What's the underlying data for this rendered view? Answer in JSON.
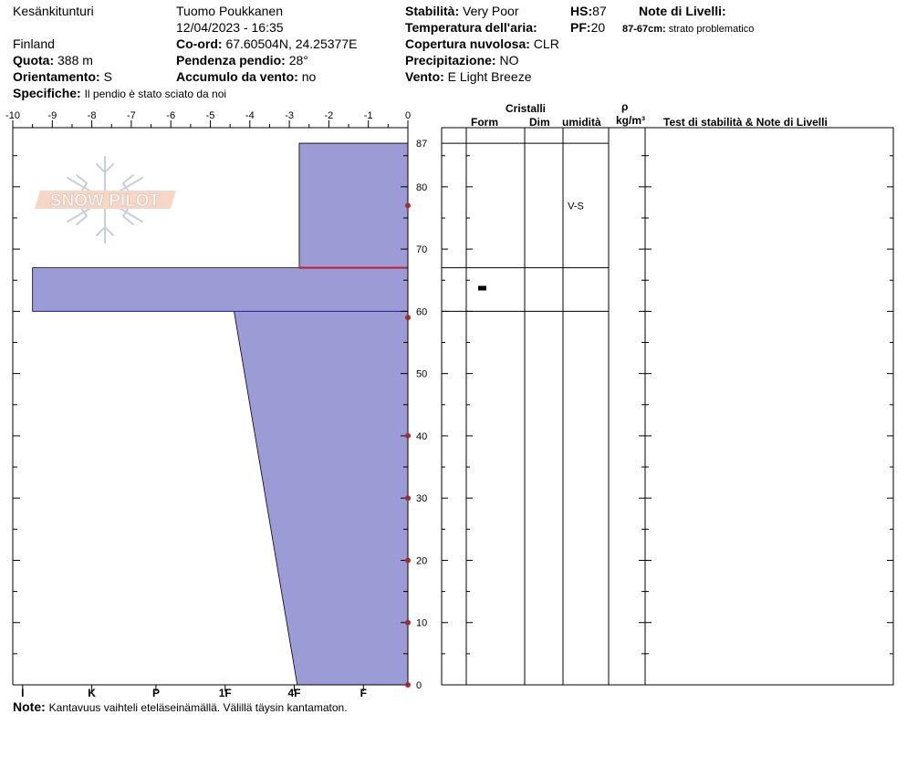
{
  "header": {
    "location": "Kesänkitunturi",
    "country": "Finland",
    "observer": "Tuomo Poukkanen",
    "datetime": "12/04/2023 - 16:35",
    "elevation_label": "Quota:",
    "elevation_value": "388 m",
    "aspect_label": "Orientamento:",
    "aspect_value": "S",
    "specifics_label": "Specifiche:",
    "specifics_value": "Il pendio è stato sciato da noi",
    "coord_label": "Co-ord:",
    "coord_value": "67.60504N, 24.25377E",
    "slope_label": "Pendenza pendio:",
    "slope_value": "28°",
    "wind_loading_label": "Accumulo da vento:",
    "wind_loading_value": "no",
    "stability_label": "Stabilità:",
    "stability_value": "Very Poor",
    "air_temp_label": "Temperatura dell'aria:",
    "sky_label": "Copertura nuvolosa:",
    "sky_value": "CLR",
    "precip_label": "Precipitazione:",
    "precip_value": "NO",
    "wind_label": "Vento:",
    "wind_value": "E Light Breeze",
    "hs_label": "HS:",
    "hs_value": "87",
    "pf_label": "PF:",
    "pf_value": "20",
    "layer_notes_label": "Note di Livelli:",
    "layer_note_range": "87-67cm:",
    "layer_note_text": "strato problematico"
  },
  "note": {
    "label": "Note:",
    "text": "Kantavuus vaihteli eteläseinämällä. Välillä täysin kantamaton."
  },
  "logo": {
    "text": "SNOW PILOT"
  },
  "table_headers": {
    "crystals": "Cristalli",
    "form": "Form",
    "size": "Dim",
    "moisture": "umidità",
    "density_symbol": "ρ",
    "density_unit": "kg/m³",
    "stability_notes": "Test di stabilità & Note di Livelli"
  },
  "chart_data": {
    "type": "area",
    "title": "",
    "x_axis_top": {
      "label": "",
      "ticks": [
        -10,
        -9,
        -8,
        -7,
        -6,
        -5,
        -4,
        -3,
        -2,
        -1,
        0
      ],
      "range": [
        -10,
        0
      ]
    },
    "x_axis_bottom": {
      "label": "",
      "ticks": [
        "I",
        "K",
        "P",
        "1F",
        "4F",
        "F"
      ]
    },
    "y_axis": {
      "label": "",
      "range": [
        0,
        87
      ],
      "ticks": [
        0,
        10,
        20,
        30,
        40,
        50,
        60,
        70,
        80,
        87
      ]
    },
    "hardness_profile": [
      {
        "top": 87,
        "bottom": 67,
        "hardness_top": -2.75,
        "hardness_bottom": -2.75
      },
      {
        "top": 67,
        "bottom": 60,
        "hardness_top": -9.5,
        "hardness_bottom": -9.5
      },
      {
        "top": 60,
        "bottom": 0,
        "hardness_top": -4.4,
        "hardness_bottom": -2.8
      }
    ],
    "temperature_points": [
      {
        "depth": 77,
        "temp": 0
      },
      {
        "depth": 59,
        "temp": 0
      },
      {
        "depth": 40,
        "temp": 0
      },
      {
        "depth": 30,
        "temp": 0
      },
      {
        "depth": 20,
        "temp": 0
      },
      {
        "depth": 10,
        "temp": 0
      },
      {
        "depth": 0,
        "temp": 0
      }
    ],
    "problem_layer_depth": 67,
    "layer_boundaries": [
      87,
      67,
      60
    ],
    "layer_attributes": [
      {
        "top": 87,
        "bottom": 67,
        "form": "",
        "size": "",
        "moisture": "V-S"
      },
      {
        "top": 67,
        "bottom": 60,
        "form": "melt-freeze-crust",
        "size": "",
        "moisture": ""
      }
    ],
    "grid": false,
    "colors": {
      "fill": "#9b9bd6",
      "outline": "#2a2a9e",
      "temperature": "#a52a2a",
      "problem_layer": "#c0202a"
    }
  }
}
